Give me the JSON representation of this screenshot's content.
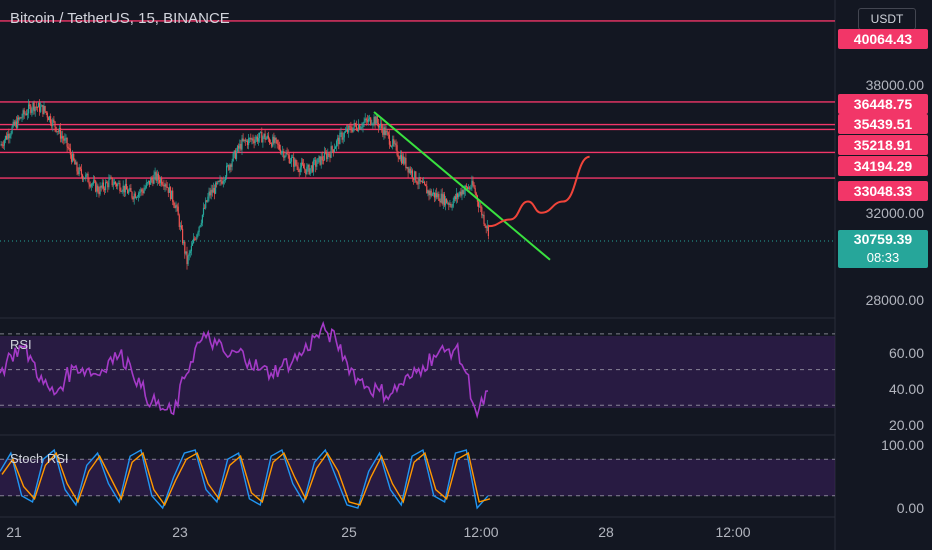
{
  "header": {
    "title": "Bitcoin / TetherUS, 15, BINANCE",
    "currency_button": "USDT"
  },
  "panes": {
    "rsi_label": "RSI",
    "stoch_label": "Stoch RSI"
  },
  "price_axis": {
    "tick_labels": [
      "38000.00",
      "32000.00",
      "28000.00"
    ],
    "level_badges": [
      "40064.43",
      "36448.75",
      "35439.51",
      "35218.91",
      "34194.29",
      "33048.33"
    ],
    "current_price": "30759.39",
    "countdown": "08:33"
  },
  "rsi_axis": {
    "tick_labels": [
      "60.00",
      "40.00",
      "20.00"
    ]
  },
  "stoch_axis": {
    "tick_labels": [
      "100.00",
      "0.00"
    ]
  },
  "time_axis": {
    "labels": [
      "21",
      "23",
      "25",
      "12:00",
      "28",
      "12:00"
    ]
  },
  "colors": {
    "background": "#131722",
    "level_line": "#f23668",
    "trend_line": "#39e13f",
    "projection": "#f0443a",
    "rsi_line": "#a43ac7",
    "rsi_band": "#3a1f5c",
    "stoch_k": "#2196f3",
    "stoch_d": "#ff9800",
    "candle_up": "#26a69a",
    "candle_down": "#ef5350"
  },
  "chart_data": {
    "type": "candlestick",
    "symbol": "Bitcoin / TetherUS",
    "interval": "15",
    "exchange": "BINANCE",
    "price_range": [
      26800,
      41000
    ],
    "horizontal_levels": [
      40064.43,
      36448.75,
      35439.51,
      35218.91,
      34194.29,
      33048.33
    ],
    "price_path": [
      [
        0,
        34500
      ],
      [
        5,
        35200
      ],
      [
        10,
        35800
      ],
      [
        15,
        36300
      ],
      [
        20,
        36100
      ],
      [
        25,
        35400
      ],
      [
        30,
        34600
      ],
      [
        35,
        33400
      ],
      [
        40,
        33000
      ],
      [
        45,
        32500
      ],
      [
        50,
        32900
      ],
      [
        55,
        32700
      ],
      [
        60,
        32300
      ],
      [
        65,
        32500
      ],
      [
        70,
        33100
      ],
      [
        75,
        32900
      ],
      [
        80,
        31800
      ],
      [
        85,
        29300
      ],
      [
        90,
        30800
      ],
      [
        95,
        32300
      ],
      [
        100,
        32800
      ],
      [
        105,
        33800
      ],
      [
        110,
        34600
      ],
      [
        115,
        34800
      ],
      [
        120,
        34900
      ],
      [
        125,
        34600
      ],
      [
        130,
        34100
      ],
      [
        135,
        33600
      ],
      [
        140,
        33400
      ],
      [
        145,
        33800
      ],
      [
        150,
        34200
      ],
      [
        155,
        34900
      ],
      [
        160,
        35300
      ],
      [
        165,
        35500
      ],
      [
        170,
        35700
      ],
      [
        175,
        35100
      ],
      [
        180,
        34300
      ],
      [
        185,
        33600
      ],
      [
        190,
        32900
      ],
      [
        195,
        32400
      ],
      [
        200,
        32200
      ],
      [
        205,
        31900
      ],
      [
        210,
        32500
      ],
      [
        215,
        32700
      ],
      [
        220,
        31200
      ],
      [
        222,
        30700
      ]
    ],
    "trend_line": [
      [
        170,
        36000
      ],
      [
        250,
        29400
      ]
    ],
    "projection_path": [
      [
        222,
        30900
      ],
      [
        232,
        31200
      ],
      [
        240,
        32000
      ],
      [
        246,
        31500
      ],
      [
        256,
        32000
      ],
      [
        268,
        34000
      ]
    ],
    "rsi": {
      "range": [
        15,
        75
      ],
      "guides": [
        70,
        50,
        30
      ],
      "values": [
        48,
        58,
        63,
        55,
        42,
        36,
        45,
        52,
        50,
        47,
        55,
        58,
        53,
        40,
        32,
        28,
        25,
        45,
        62,
        68,
        64,
        57,
        60,
        55,
        50,
        48,
        52,
        55,
        60,
        68,
        72,
        66,
        54,
        45,
        40,
        38,
        36,
        42,
        46,
        52,
        58,
        60,
        62,
        48,
        24,
        38
      ]
    },
    "stoch_rsi": {
      "range": [
        0,
        100
      ],
      "guides": [
        80,
        20
      ],
      "k": [
        60,
        90,
        20,
        10,
        80,
        95,
        30,
        5,
        70,
        90,
        40,
        10,
        85,
        95,
        20,
        0,
        50,
        90,
        95,
        30,
        10,
        80,
        90,
        15,
        5,
        85,
        95,
        40,
        10,
        75,
        95,
        50,
        5,
        0,
        60,
        90,
        30,
        5,
        85,
        95,
        20,
        10,
        90,
        95,
        0,
        20
      ],
      "d": [
        55,
        80,
        35,
        15,
        70,
        90,
        40,
        10,
        60,
        85,
        50,
        15,
        75,
        90,
        30,
        5,
        45,
        80,
        90,
        40,
        15,
        70,
        85,
        25,
        10,
        75,
        90,
        50,
        15,
        65,
        90,
        60,
        10,
        5,
        50,
        85,
        40,
        10,
        75,
        90,
        30,
        15,
        80,
        90,
        10,
        15
      ]
    },
    "x_tick_labels": [
      "21",
      "23",
      "25",
      "12:00",
      "28",
      "12:00"
    ]
  }
}
